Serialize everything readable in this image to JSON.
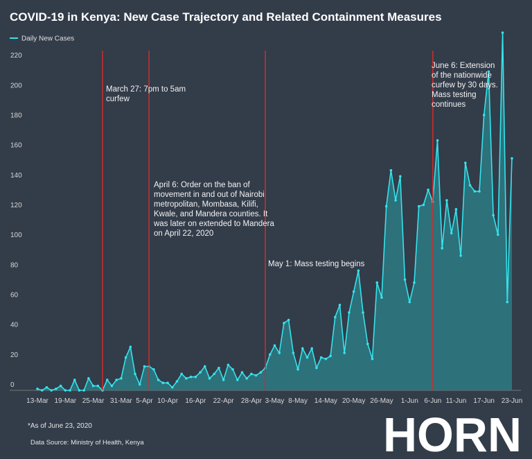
{
  "chart_data": {
    "type": "area-line",
    "title": "COVID-19 in Kenya: New Case Trajectory and Related Containment Measures",
    "categories": [
      "13-Mar",
      null,
      null,
      null,
      null,
      null,
      "19-Mar",
      null,
      null,
      null,
      null,
      null,
      "25-Mar",
      null,
      null,
      null,
      null,
      null,
      "31-Mar",
      null,
      null,
      null,
      null,
      "5-Apr",
      null,
      null,
      null,
      null,
      "10-Apr",
      null,
      null,
      null,
      null,
      null,
      "16-Apr",
      null,
      null,
      null,
      null,
      null,
      "22-Apr",
      null,
      null,
      null,
      null,
      null,
      "28-Apr",
      null,
      null,
      null,
      null,
      "3-May",
      null,
      null,
      null,
      null,
      "8-May",
      null,
      null,
      null,
      null,
      null,
      "14-May",
      null,
      null,
      null,
      null,
      null,
      "20-May",
      null,
      null,
      null,
      null,
      null,
      "26-May",
      null,
      null,
      null,
      null,
      null,
      "1-Jun",
      null,
      null,
      null,
      null,
      "6-Jun",
      null,
      null,
      null,
      null,
      "11-Jun",
      null,
      null,
      null,
      null,
      null,
      "17-Jun",
      null,
      null,
      null,
      null,
      null,
      "23-Jun"
    ],
    "series": [
      {
        "name": "Daily New Cases",
        "color": "#35e3ec",
        "values": [
          1,
          0,
          2,
          0,
          1,
          3,
          0,
          0,
          7,
          0,
          0,
          8,
          3,
          3,
          0,
          7,
          3,
          7,
          8,
          22,
          29,
          11,
          4,
          16,
          16,
          14,
          7,
          5,
          5,
          2,
          6,
          11,
          8,
          9,
          9,
          12,
          16,
          8,
          11,
          15,
          7,
          17,
          14,
          7,
          12,
          8,
          11,
          10,
          12,
          15,
          24,
          30,
          25,
          45,
          47,
          25,
          14,
          28,
          22,
          28,
          15,
          22,
          21,
          23,
          49,
          57,
          25,
          52,
          66,
          80,
          52,
          31,
          21,
          72,
          62,
          123,
          147,
          127,
          143,
          74,
          59,
          72,
          123,
          124,
          134,
          126,
          167,
          95,
          127,
          105,
          121,
          90,
          152,
          137,
          133,
          133,
          184,
          213,
          117,
          104,
          239,
          59,
          155
        ]
      }
    ],
    "ylim": [
      0,
      240
    ],
    "yticks": [
      0,
      20,
      40,
      60,
      80,
      100,
      120,
      140,
      160,
      180,
      200,
      220
    ],
    "grid": false,
    "area_color": "#2d7a84",
    "annotations": [
      "March 27: 7pm to 5am curfew",
      "April 6: Order on the ban of movement in and out of Nairobi metropolitan, Mombasa, Kilifi, Kwale, and Mandera counties. It was later on extended to Mandera on April 22, 2020",
      "May 1: Mass testing begins",
      "June 6: Extension of the nationwide curfew by 30 days. Mass testing continues"
    ],
    "annotation_color": "#d42a2a",
    "footnote": "*As of June 23, 2020",
    "source": "Data Source: Ministry of Health, Kenya",
    "logo": "HORN"
  }
}
